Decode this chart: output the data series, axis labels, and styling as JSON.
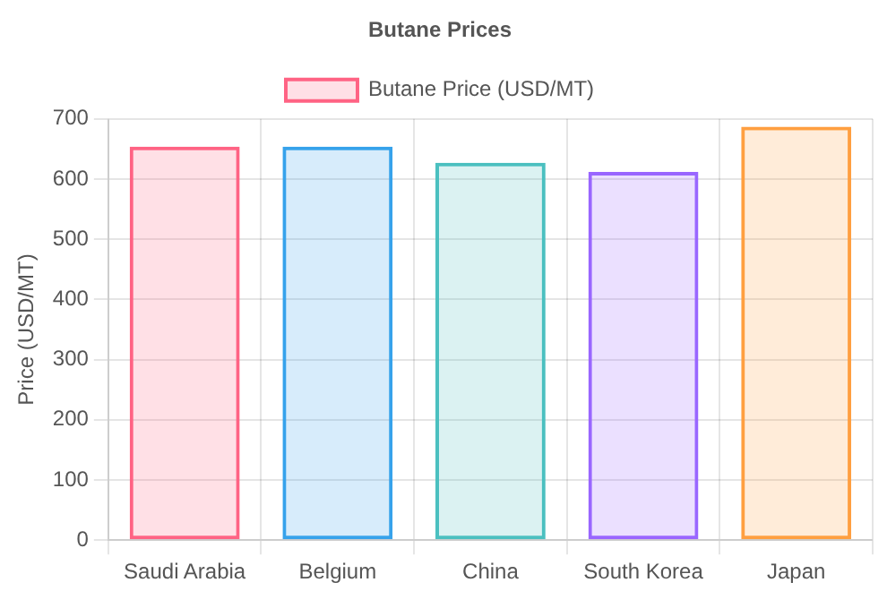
{
  "chart_data": {
    "type": "bar",
    "title": "Butane Prices",
    "ylabel": "Price (USD/MT)",
    "categories": [
      "Saudi Arabia",
      "Belgium",
      "China",
      "South Korea",
      "Japan"
    ],
    "series": [
      {
        "name": "Butane Price (USD/MT)",
        "values": [
          654,
          654,
          627,
          612,
          687
        ],
        "colors": [
          "#ff6384",
          "#36a2eb",
          "#4bc0c0",
          "#9966ff",
          "#ff9f40"
        ]
      }
    ],
    "ylim": [
      0,
      700
    ],
    "yticks": [
      0,
      100,
      200,
      300,
      400,
      500,
      600,
      700
    ],
    "grid": true,
    "legend": "top"
  }
}
